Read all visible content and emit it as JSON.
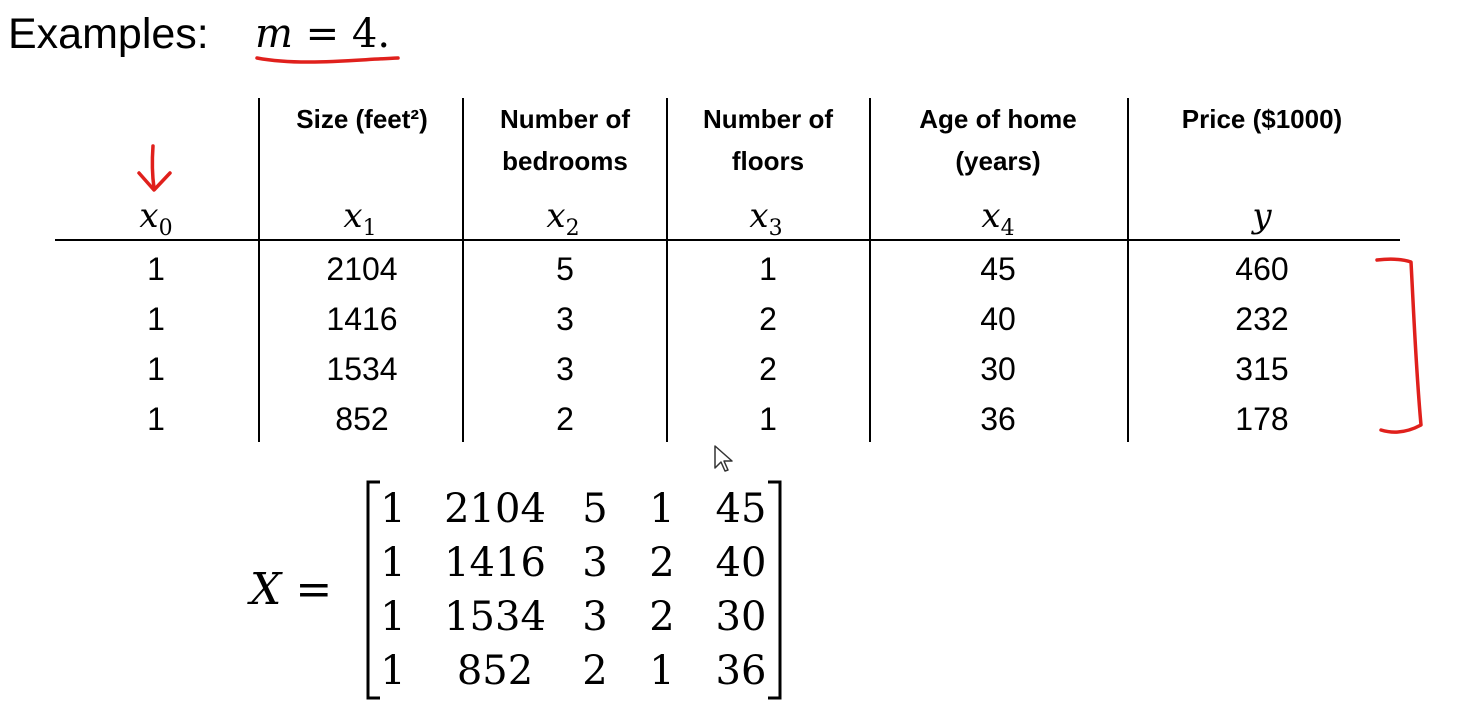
{
  "title": {
    "word": "Examples:",
    "var": "m",
    "eq": "=",
    "num": "4."
  },
  "headers": [
    {
      "lines": [
        "",
        ""
      ],
      "var": "x",
      "sub": "0"
    },
    {
      "lines": [
        "Size (feet²)",
        ""
      ],
      "var": "x",
      "sub": "1"
    },
    {
      "lines": [
        "Number of",
        "bedrooms"
      ],
      "var": "x",
      "sub": "2"
    },
    {
      "lines": [
        "Number of",
        "floors"
      ],
      "var": "x",
      "sub": "3"
    },
    {
      "lines": [
        "Age of home",
        "(years)"
      ],
      "var": "x",
      "sub": "4"
    },
    {
      "lines": [
        "Price ($1000)",
        ""
      ],
      "var": "y",
      "sub": ""
    }
  ],
  "rows": [
    [
      "1",
      "2104",
      "5",
      "1",
      "45",
      "460"
    ],
    [
      "1",
      "1416",
      "3",
      "2",
      "40",
      "232"
    ],
    [
      "1",
      "1534",
      "3",
      "2",
      "30",
      "315"
    ],
    [
      "1",
      "852",
      "2",
      "1",
      "36",
      "178"
    ]
  ],
  "matrix": {
    "label": "X",
    "eq": "=",
    "rows": [
      [
        "1",
        "2104",
        "5",
        "1",
        "45"
      ],
      [
        "1",
        "1416",
        "3",
        "2",
        "40"
      ],
      [
        "1",
        "1534",
        "3",
        "2",
        "30"
      ],
      [
        "1",
        "852",
        "2",
        "1",
        "36"
      ]
    ]
  },
  "colors": {
    "ink": "#e0201c",
    "text": "#000000",
    "background": "#ffffff"
  },
  "icons": [
    "arrow-cursor-icon",
    "down-arrow-annotation-icon",
    "bracket-annotation-icon"
  ]
}
